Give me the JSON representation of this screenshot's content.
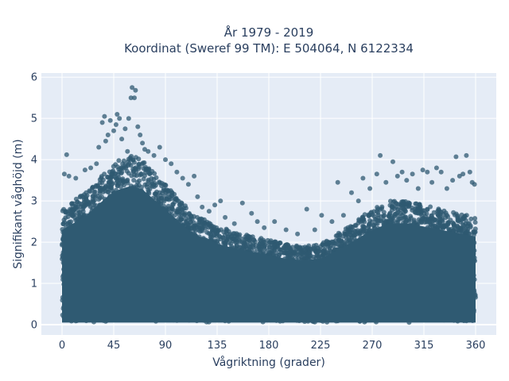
{
  "chart_data": {
    "type": "scatter",
    "title_line1": "År 1979 - 2019",
    "title_line2": "Koordinat (Sweref 99 TM): E 504064, N 6122334",
    "xlabel": "Vågriktning (grader)",
    "ylabel": "Signifikant våghöjd (m)",
    "xlim": [
      -18,
      378
    ],
    "ylim": [
      -0.25,
      6.1
    ],
    "xticks": [
      0,
      45,
      90,
      135,
      180,
      225,
      270,
      315,
      360
    ],
    "yticks": [
      0,
      1,
      2,
      3,
      4,
      5,
      6
    ],
    "grid": true,
    "legend": "none",
    "marker_color": "#2f5a72",
    "envelope": {
      "description_x": [
        0,
        10,
        20,
        30,
        40,
        50,
        60,
        70,
        80,
        90,
        100,
        110,
        120,
        135,
        150,
        165,
        180,
        195,
        210,
        225,
        240,
        255,
        270,
        285,
        300,
        315,
        330,
        345,
        360
      ],
      "upper_y": [
        2.8,
        3.0,
        3.2,
        3.5,
        3.8,
        4.0,
        4.1,
        4.0,
        3.7,
        3.4,
        3.1,
        2.8,
        2.6,
        2.4,
        2.25,
        2.15,
        2.05,
        1.95,
        1.9,
        1.95,
        2.2,
        2.5,
        2.8,
        3.0,
        3.0,
        2.9,
        2.8,
        2.7,
        2.6
      ]
    },
    "outliers": [
      {
        "x": 4,
        "y": 4.12
      },
      {
        "x": 2,
        "y": 3.65
      },
      {
        "x": 6,
        "y": 3.6
      },
      {
        "x": 12,
        "y": 3.55
      },
      {
        "x": 20,
        "y": 3.75
      },
      {
        "x": 25,
        "y": 3.8
      },
      {
        "x": 30,
        "y": 3.9
      },
      {
        "x": 32,
        "y": 4.3
      },
      {
        "x": 35,
        "y": 4.9
      },
      {
        "x": 37,
        "y": 5.05
      },
      {
        "x": 38,
        "y": 4.45
      },
      {
        "x": 40,
        "y": 4.6
      },
      {
        "x": 42,
        "y": 4.95
      },
      {
        "x": 45,
        "y": 4.7
      },
      {
        "x": 47,
        "y": 4.85
      },
      {
        "x": 48,
        "y": 5.1
      },
      {
        "x": 50,
        "y": 5.0
      },
      {
        "x": 52,
        "y": 4.5
      },
      {
        "x": 55,
        "y": 4.75
      },
      {
        "x": 57,
        "y": 4.2
      },
      {
        "x": 58,
        "y": 5.0
      },
      {
        "x": 60,
        "y": 5.5
      },
      {
        "x": 61,
        "y": 5.75
      },
      {
        "x": 63,
        "y": 5.5
      },
      {
        "x": 64,
        "y": 5.68
      },
      {
        "x": 66,
        "y": 4.8
      },
      {
        "x": 68,
        "y": 4.6
      },
      {
        "x": 70,
        "y": 4.4
      },
      {
        "x": 72,
        "y": 4.25
      },
      {
        "x": 75,
        "y": 4.2
      },
      {
        "x": 80,
        "y": 4.1
      },
      {
        "x": 85,
        "y": 4.3
      },
      {
        "x": 90,
        "y": 4.0
      },
      {
        "x": 95,
        "y": 3.9
      },
      {
        "x": 100,
        "y": 3.7
      },
      {
        "x": 105,
        "y": 3.55
      },
      {
        "x": 110,
        "y": 3.4
      },
      {
        "x": 115,
        "y": 3.6
      },
      {
        "x": 118,
        "y": 3.1
      },
      {
        "x": 122,
        "y": 2.85
      },
      {
        "x": 128,
        "y": 2.75
      },
      {
        "x": 133,
        "y": 2.9
      },
      {
        "x": 138,
        "y": 3.0
      },
      {
        "x": 142,
        "y": 2.6
      },
      {
        "x": 150,
        "y": 2.45
      },
      {
        "x": 157,
        "y": 2.95
      },
      {
        "x": 165,
        "y": 2.7
      },
      {
        "x": 170,
        "y": 2.5
      },
      {
        "x": 176,
        "y": 2.35
      },
      {
        "x": 185,
        "y": 2.5
      },
      {
        "x": 195,
        "y": 2.3
      },
      {
        "x": 205,
        "y": 2.2
      },
      {
        "x": 213,
        "y": 2.8
      },
      {
        "x": 220,
        "y": 2.3
      },
      {
        "x": 226,
        "y": 2.65
      },
      {
        "x": 235,
        "y": 2.5
      },
      {
        "x": 240,
        "y": 3.45
      },
      {
        "x": 245,
        "y": 2.65
      },
      {
        "x": 252,
        "y": 3.2
      },
      {
        "x": 258,
        "y": 3.0
      },
      {
        "x": 262,
        "y": 3.55
      },
      {
        "x": 268,
        "y": 3.3
      },
      {
        "x": 274,
        "y": 3.65
      },
      {
        "x": 277,
        "y": 4.1
      },
      {
        "x": 282,
        "y": 3.45
      },
      {
        "x": 288,
        "y": 3.95
      },
      {
        "x": 292,
        "y": 3.6
      },
      {
        "x": 296,
        "y": 3.7
      },
      {
        "x": 300,
        "y": 3.5
      },
      {
        "x": 305,
        "y": 3.65
      },
      {
        "x": 310,
        "y": 3.3
      },
      {
        "x": 314,
        "y": 3.75
      },
      {
        "x": 318,
        "y": 3.7
      },
      {
        "x": 322,
        "y": 3.45
      },
      {
        "x": 326,
        "y": 3.8
      },
      {
        "x": 330,
        "y": 3.7
      },
      {
        "x": 335,
        "y": 3.3
      },
      {
        "x": 340,
        "y": 3.5
      },
      {
        "x": 343,
        "y": 4.07
      },
      {
        "x": 346,
        "y": 3.6
      },
      {
        "x": 349,
        "y": 3.65
      },
      {
        "x": 352,
        "y": 4.1
      },
      {
        "x": 355,
        "y": 3.7
      },
      {
        "x": 357,
        "y": 3.45
      },
      {
        "x": 359,
        "y": 3.4
      }
    ]
  }
}
